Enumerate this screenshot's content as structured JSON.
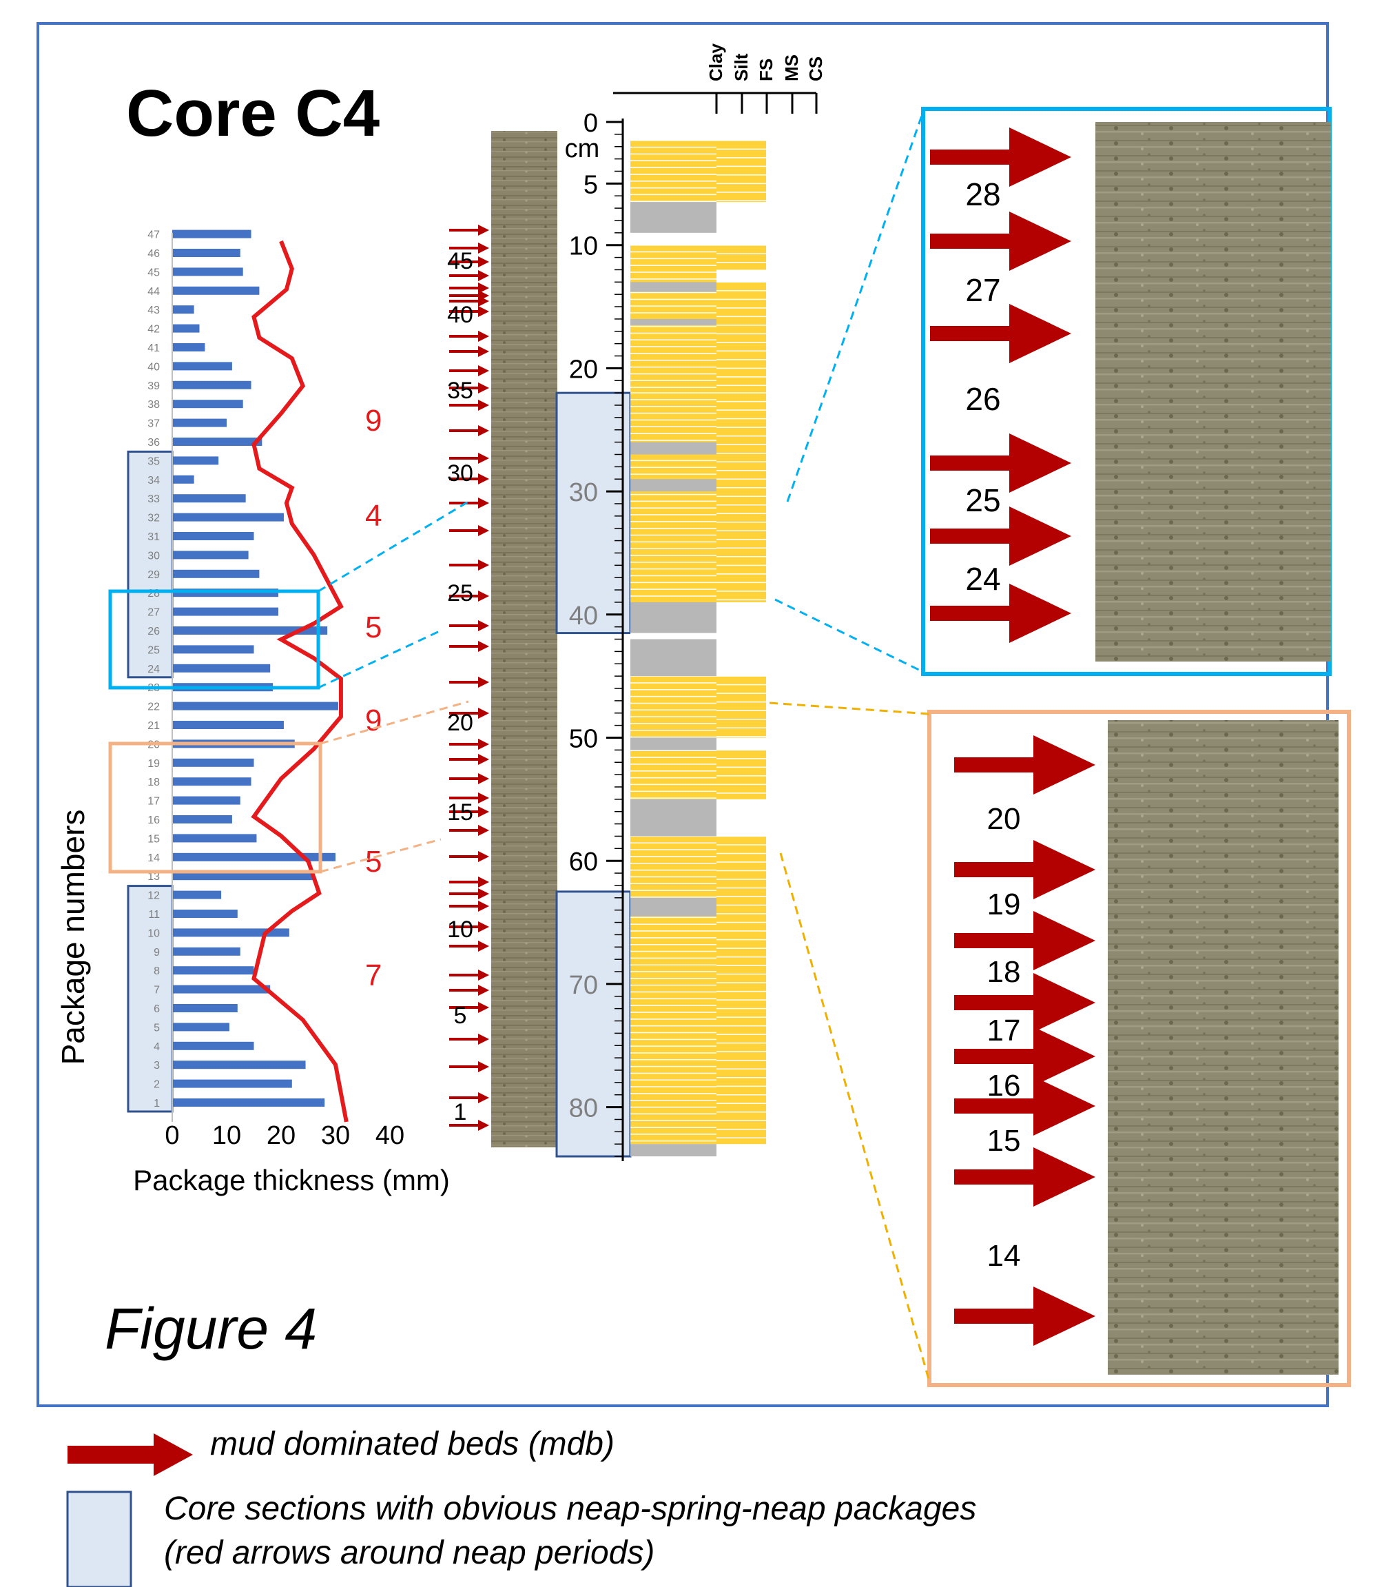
{
  "figure": {
    "title": "Core C4",
    "label": "Figure 4"
  },
  "chart_data": {
    "type": "bar",
    "orientation": "horizontal",
    "ylabel": "Package numbers",
    "xlabel": "Package thickness (mm)",
    "xlim": [
      0,
      40
    ],
    "xticks": [
      "0",
      "10",
      "20",
      "30",
      "40"
    ],
    "categories": [
      "1",
      "2",
      "3",
      "4",
      "5",
      "6",
      "7",
      "8",
      "9",
      "10",
      "11",
      "12",
      "13",
      "14",
      "15",
      "16",
      "17",
      "18",
      "19",
      "20",
      "21",
      "22",
      "23",
      "24",
      "25",
      "26",
      "27",
      "28",
      "29",
      "30",
      "31",
      "32",
      "33",
      "34",
      "35",
      "36",
      "37",
      "38",
      "39",
      "40",
      "41",
      "42",
      "43",
      "44",
      "45",
      "46",
      "47"
    ],
    "values": [
      28,
      22,
      24.5,
      15,
      10.5,
      12,
      18,
      15,
      12.5,
      21.5,
      12,
      9,
      26,
      30,
      15.5,
      11,
      12.5,
      14.5,
      15,
      22.5,
      20.5,
      30.5,
      18.5,
      18,
      15,
      28.5,
      19.5,
      19.5,
      16,
      14,
      15,
      20.5,
      13.5,
      4,
      8.5,
      16.5,
      10,
      13,
      14.5,
      11,
      6,
      5,
      4,
      16,
      13,
      12.5,
      14.5
    ],
    "cycle_counts": [
      "7",
      "5",
      "9",
      "5",
      "4",
      "9"
    ]
  },
  "core_log": {
    "grain_sizes": [
      "Clay",
      "Silt",
      "FS",
      "MS",
      "CS"
    ],
    "depth_unit": "cm",
    "depth_ticks": [
      "0",
      "5",
      "10",
      "20",
      "30",
      "40",
      "50",
      "60",
      "70",
      "80"
    ],
    "arrow_numbers": [
      "1",
      "5",
      "10",
      "15",
      "20",
      "25",
      "30",
      "35",
      "40",
      "45"
    ]
  },
  "insets": {
    "top_numbers": [
      "28",
      "27",
      "26",
      "25",
      "24"
    ],
    "bottom_numbers": [
      "20",
      "19",
      "18",
      "17",
      "16",
      "15",
      "14"
    ]
  },
  "colors": {
    "frame": "#4472c4",
    "bars": "#4472c4",
    "curve": "#e41a1c",
    "arrow": "#b30000",
    "sand": "#ffd23a",
    "mud": "#b7b7b7",
    "section_fill": "#dde7f3",
    "section_border": "#2f528f",
    "inset_top": "#00b0f0",
    "inset_bottom": "#f4b183",
    "core": "#8b846a"
  },
  "legend": {
    "mdb": "mud dominated beds (mdb)",
    "sections_line1": "Core sections with obvious neap-spring-neap packages",
    "sections_line2": "(red arrows around neap periods)"
  }
}
